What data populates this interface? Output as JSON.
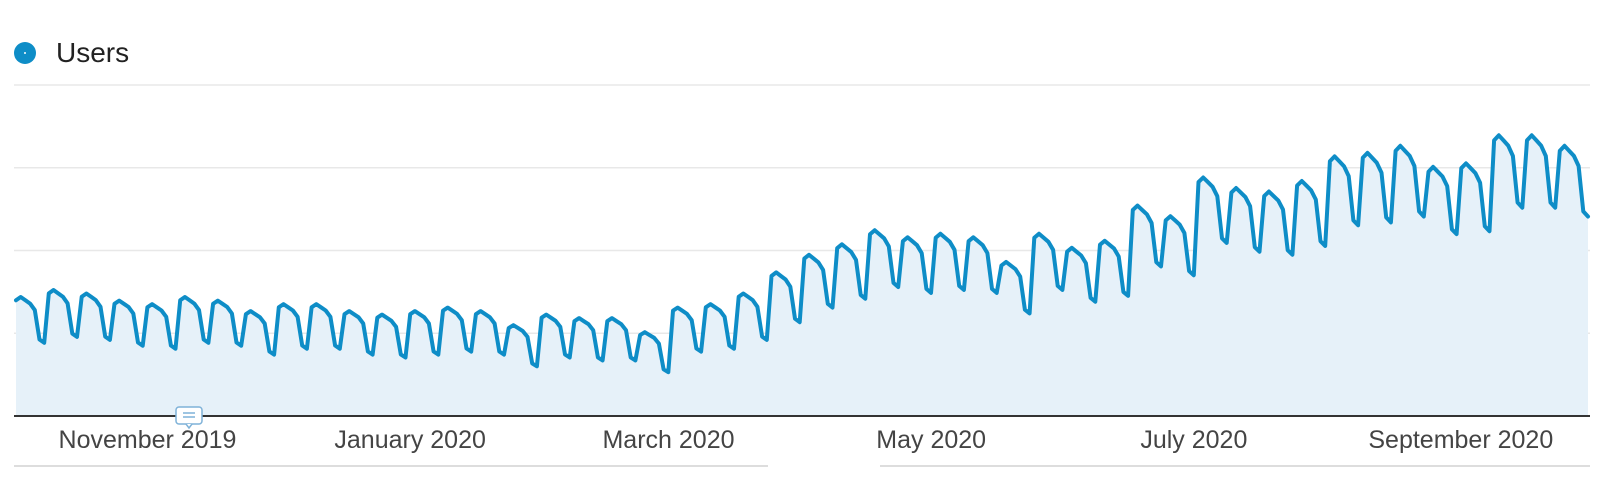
{
  "legend": {
    "label": "Users"
  },
  "colors": {
    "series": "#0e8dc7",
    "fill": "#e6f1f9",
    "grid": "#e8e8e8",
    "axis": "#333333"
  },
  "icons": {
    "annotation": "annotation-icon"
  },
  "chart_data": {
    "type": "area",
    "title": "",
    "xlabel": "",
    "ylabel": "",
    "grid": true,
    "legend_position": "top-left",
    "x_tick_labels": [
      "November 2019",
      "January 2020",
      "March 2020",
      "May 2020",
      "July 2020",
      "September 2020"
    ],
    "x_range": [
      "2019-10-01",
      "2020-10-01"
    ],
    "series": [
      {
        "name": "Users",
        "weekly_values": [
          31,
          33,
          32,
          30,
          29,
          31,
          30,
          27,
          29,
          29,
          27,
          26,
          27,
          28,
          27,
          23,
          26,
          25,
          25,
          21,
          28,
          29,
          32,
          38,
          43,
          46,
          50,
          48,
          49,
          48,
          41,
          49,
          45,
          47,
          57,
          54,
          65,
          62,
          61,
          64,
          71,
          72,
          74,
          68,
          69,
          77,
          77,
          74
        ]
      }
    ]
  }
}
